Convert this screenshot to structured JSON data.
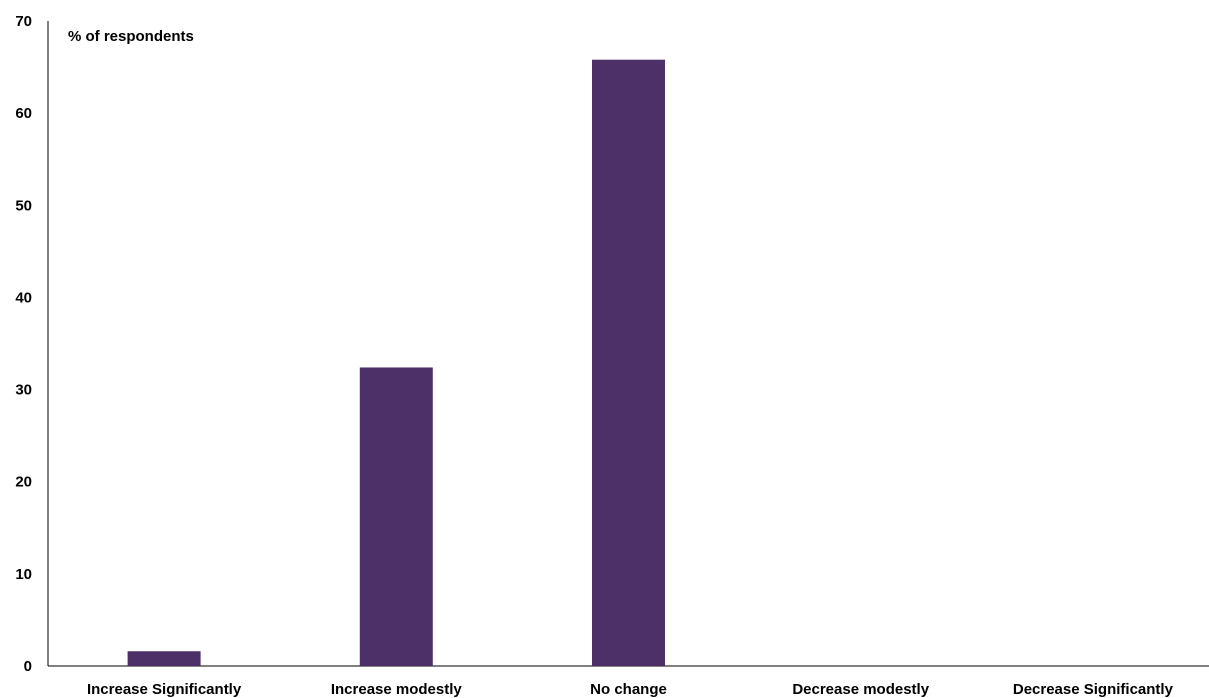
{
  "chart_data": {
    "type": "bar",
    "ylabel": "% of respondents",
    "categories": [
      "Increase Significantly",
      "Increase modestly",
      "No change",
      "Decrease modestly",
      "Decrease Significantly"
    ],
    "values": [
      1.6,
      32.4,
      65.8,
      0,
      0
    ],
    "ylim": [
      0,
      70
    ],
    "yticks": [
      0,
      10,
      20,
      30,
      40,
      50,
      60,
      70
    ],
    "grid": false,
    "legend": "none",
    "bar_color": "#4e3068"
  }
}
